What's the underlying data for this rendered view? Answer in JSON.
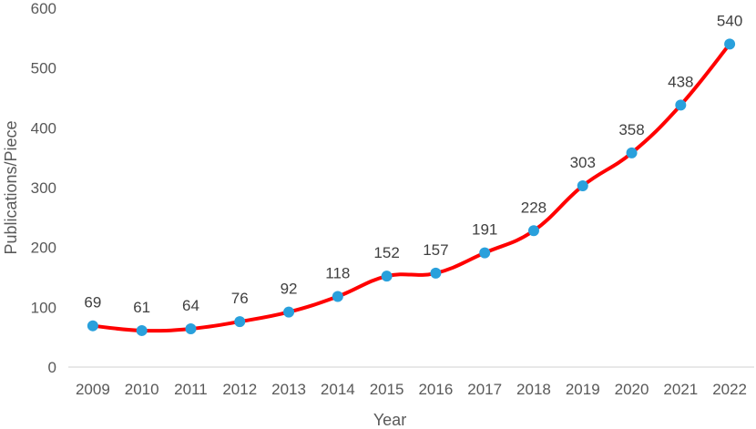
{
  "chart_data": {
    "type": "line",
    "title": "",
    "xlabel": "Year",
    "ylabel": "Publications/Piece",
    "ylim": [
      0,
      600
    ],
    "yticks": [
      0,
      100,
      200,
      300,
      400,
      500,
      600
    ],
    "categories": [
      "2009",
      "2010",
      "2011",
      "2012",
      "2013",
      "2014",
      "2015",
      "2016",
      "2017",
      "2018",
      "2019",
      "2020",
      "2021",
      "2022"
    ],
    "series": [
      {
        "values": [
          69,
          61,
          64,
          76,
          92,
          118,
          152,
          157,
          191,
          228,
          303,
          358,
          438,
          540
        ]
      }
    ],
    "data_labels": true,
    "grid": false,
    "legend": "none",
    "colors": {
      "line": "#ff0000",
      "marker": "#29a0dc",
      "axis": "#d9d9d9",
      "text": "#595959"
    }
  }
}
